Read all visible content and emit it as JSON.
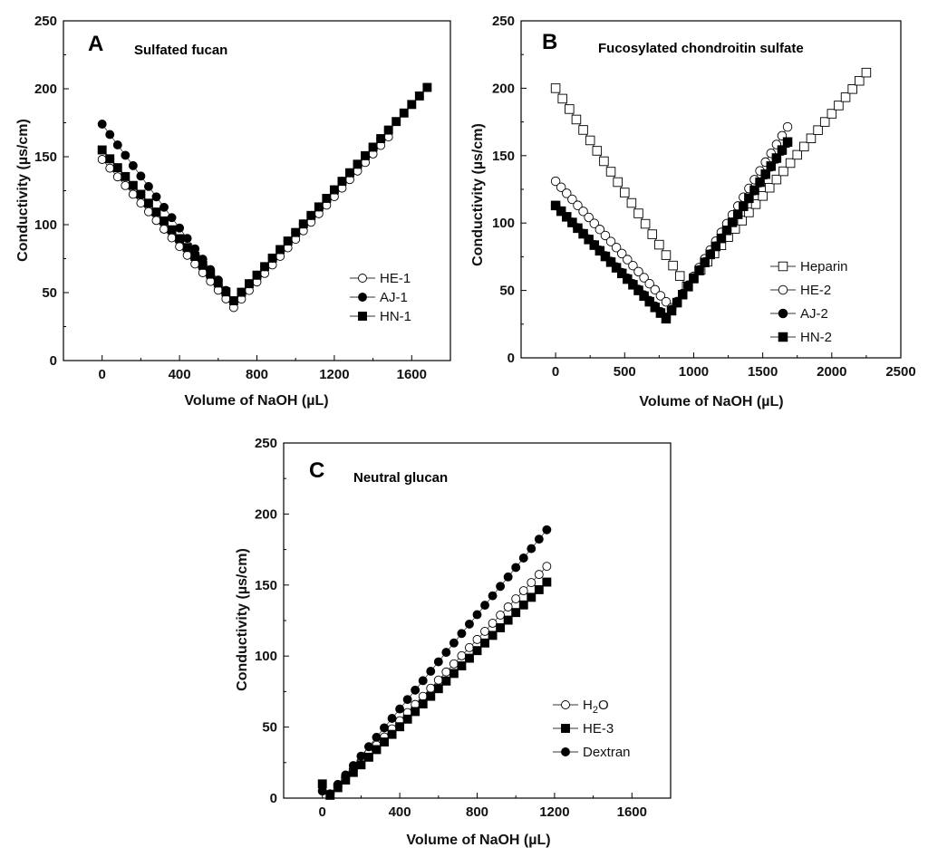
{
  "chart_data": [
    {
      "panel": "A",
      "type": "scatter",
      "title": "Sulfated fucan",
      "xlabel": "Volume of NaOH (µL)",
      "ylabel": "Conductivity (µs/cm)",
      "xlim": [
        -200,
        1800
      ],
      "ylim": [
        0,
        250
      ],
      "xticks": [
        0,
        400,
        800,
        1200,
        1600
      ],
      "yticks": [
        0,
        50,
        100,
        150,
        200,
        250
      ],
      "legend_position": "bottom-right",
      "series": [
        {
          "name": "HE-1",
          "marker": "open-circle",
          "x_start": 0,
          "x_step": 40,
          "min_x": 680,
          "y_start": 148,
          "y_min": 39,
          "right_slope": 0.157,
          "x_end": 1480
        },
        {
          "name": "AJ-1",
          "marker": "filled-circle",
          "x_start": 0,
          "x_step": 40,
          "min_x": 680,
          "y_start": 174,
          "y_min": 44,
          "right_slope": 0.157,
          "x_end": 1480
        },
        {
          "name": "HN-1",
          "marker": "filled-square",
          "x_start": 0,
          "x_step": 40,
          "min_x": 680,
          "y_start": 155,
          "y_min": 44,
          "right_slope": 0.157,
          "x_end": 1680
        }
      ]
    },
    {
      "panel": "B",
      "type": "scatter",
      "title": "Fucosylated chondroitin sulfate",
      "xlabel": "Volume of NaOH (µL)",
      "ylabel": "Conductivity (µs/cm)",
      "xlim": [
        -250,
        2500
      ],
      "ylim": [
        0,
        250
      ],
      "xticks": [
        0,
        500,
        1000,
        1500,
        2000,
        2500
      ],
      "yticks": [
        0,
        50,
        100,
        150,
        200,
        250
      ],
      "legend_position": "bottom-right",
      "series": [
        {
          "name": "Heparin",
          "marker": "open-square",
          "x_start": 0,
          "x_step": 50,
          "min_x": 950,
          "y_start": 200,
          "y_min": 53,
          "right_slope": 0.122,
          "x_end": 2250
        },
        {
          "name": "HE-2",
          "marker": "open-circle",
          "x_start": 0,
          "x_step": 40,
          "min_x": 850,
          "y_start": 131,
          "y_min": 36,
          "right_slope": 0.163,
          "x_end": 1700
        },
        {
          "name": "AJ-2",
          "marker": "filled-circle",
          "x_start": 0,
          "x_step": 40,
          "min_x": 800,
          "y_start": 113,
          "y_min": 30,
          "right_slope": 0.147,
          "x_end": 1700
        },
        {
          "name": "HN-2",
          "marker": "filled-square",
          "x_start": 0,
          "x_step": 40,
          "min_x": 800,
          "y_start": 113,
          "y_min": 29,
          "right_slope": 0.149,
          "x_end": 1700
        }
      ]
    },
    {
      "panel": "C",
      "type": "scatter",
      "title": "Neutral glucan",
      "xlabel": "Volume of NaOH (µL)",
      "ylabel": "Conductivity (µs/cm)",
      "xlim": [
        -200,
        1800
      ],
      "ylim": [
        0,
        250
      ],
      "xticks": [
        0,
        400,
        800,
        1200,
        1600
      ],
      "yticks": [
        0,
        50,
        100,
        150,
        200,
        250
      ],
      "legend_position": "bottom-right",
      "series": [
        {
          "name": "H2O",
          "marker": "open-circle",
          "x_start": 0,
          "x_step": 40,
          "min_x": 40,
          "y_start": 5,
          "y_min": 3,
          "right_slope": 0.143,
          "x_end": 1180
        },
        {
          "name": "HE-3",
          "marker": "filled-square",
          "x_start": 0,
          "x_step": 40,
          "min_x": 40,
          "y_start": 10,
          "y_min": 2,
          "right_slope": 0.134,
          "x_end": 1180
        },
        {
          "name": "Dextran",
          "marker": "filled-circle",
          "x_start": 0,
          "x_step": 40,
          "min_x": 40,
          "y_start": 5,
          "y_min": 3,
          "right_slope": 0.166,
          "x_end": 1180
        }
      ]
    }
  ]
}
